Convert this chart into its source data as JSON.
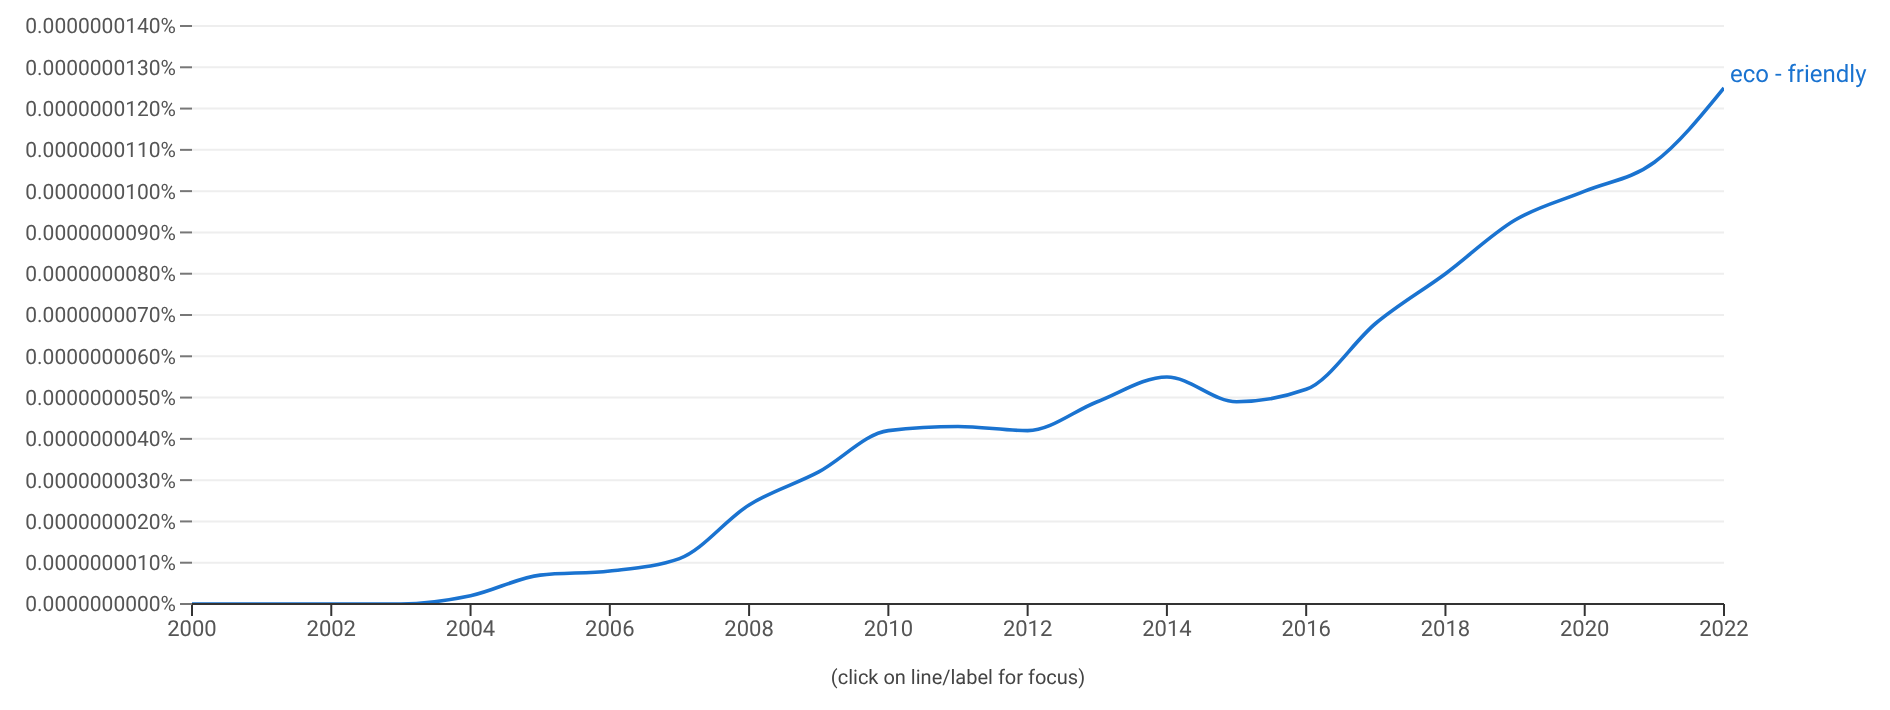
{
  "chart_data": {
    "type": "line",
    "xlabel": "(click on line/label for focus)",
    "x": [
      2000,
      2001,
      2002,
      2003,
      2004,
      2005,
      2006,
      2007,
      2008,
      2009,
      2010,
      2011,
      2012,
      2013,
      2014,
      2015,
      2016,
      2017,
      2018,
      2019,
      2020,
      2021,
      2022
    ],
    "series": [
      {
        "name": "eco - friendly",
        "color": "#1a73d0",
        "values": [
          0,
          0,
          0,
          0,
          2e-10,
          7e-10,
          8e-10,
          1.1e-09,
          2.4e-09,
          3.2e-09,
          4.2e-09,
          4.3e-09,
          4.2e-09,
          4.9e-09,
          5.5e-09,
          4.9e-09,
          5.2e-09,
          6.8e-09,
          8e-09,
          9.3e-09,
          1e-08,
          1.07e-08,
          1.25e-08
        ]
      }
    ],
    "xlim": [
      2000,
      2022
    ],
    "xticks": [
      2000,
      2002,
      2004,
      2006,
      2008,
      2010,
      2012,
      2014,
      2016,
      2018,
      2020,
      2022
    ],
    "ylim": [
      0,
      1.4e-08
    ],
    "yticks": [
      {
        "value": 0,
        "label": "0.0000000000%"
      },
      {
        "value": 1e-09,
        "label": "0.0000000010%"
      },
      {
        "value": 2e-09,
        "label": "0.0000000020%"
      },
      {
        "value": 3e-09,
        "label": "0.0000000030%"
      },
      {
        "value": 4e-09,
        "label": "0.0000000040%"
      },
      {
        "value": 5e-09,
        "label": "0.0000000050%"
      },
      {
        "value": 6e-09,
        "label": "0.0000000060%"
      },
      {
        "value": 7e-09,
        "label": "0.0000000070%"
      },
      {
        "value": 8e-09,
        "label": "0.0000000080%"
      },
      {
        "value": 9e-09,
        "label": "0.0000000090%"
      },
      {
        "value": 1e-08,
        "label": "0.0000000100%"
      },
      {
        "value": 1.1e-08,
        "label": "0.0000000110%"
      },
      {
        "value": 1.2e-08,
        "label": "0.0000000120%"
      },
      {
        "value": 1.3e-08,
        "label": "0.0000000130%"
      },
      {
        "value": 1.4e-08,
        "label": "0.0000000140%"
      }
    ],
    "grid": "y",
    "legend": false,
    "marker": "none",
    "line_style": "solid"
  }
}
